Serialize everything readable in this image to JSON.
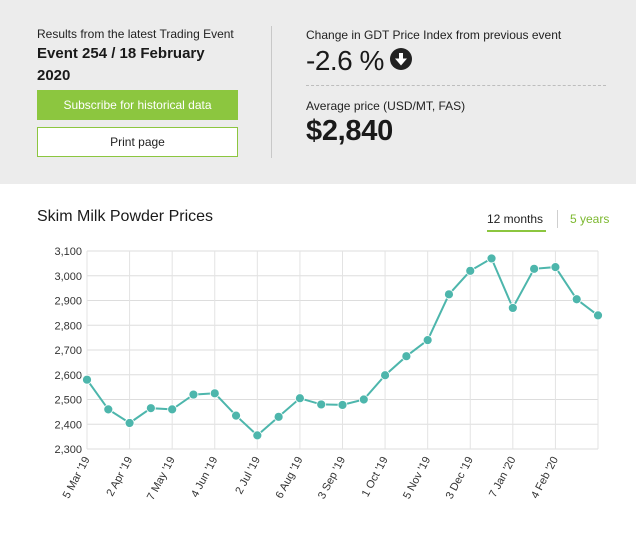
{
  "summary": {
    "results_label": "Results from the latest Trading Event",
    "event_line1": "Event 254 / 18 February",
    "event_line2": "2020",
    "subscribe_label": "Subscribe for historical data",
    "print_label": "Print page"
  },
  "change": {
    "label": "Change in GDT Price Index from previous event",
    "value": "-2.6 %",
    "direction_icon": "arrow-down-circle-icon"
  },
  "average": {
    "label": "Average price (USD/MT, FAS)",
    "value": "$2,840"
  },
  "tabs": {
    "tab_12m": "12 months",
    "tab_5y": "5 years",
    "active": "12 months"
  },
  "colors": {
    "accent_green": "#8cc63f",
    "line": "#4db6ac",
    "marker": "#4db6ac"
  },
  "chart_data": {
    "type": "line",
    "title": "Skim Milk Powder Prices",
    "xlabel": "",
    "ylabel": "",
    "ylim": [
      2300,
      3100
    ],
    "yticks": [
      2300,
      2400,
      2500,
      2600,
      2700,
      2800,
      2900,
      3000,
      3100
    ],
    "ytick_labels": [
      "2,300",
      "2,400",
      "2,500",
      "2,600",
      "2,700",
      "2,800",
      "2,900",
      "3,000",
      "3,100"
    ],
    "xtick_labels": [
      "5 Mar '19",
      "2 Apr '19",
      "7 May '19",
      "4 Jun '19",
      "2 Jul '19",
      "6 Aug '19",
      "3 Sep '19",
      "1 Oct '19",
      "5 Nov '19",
      "3 Dec '19",
      "7 Jan '20",
      "4 Feb '20"
    ],
    "xtick_positions": [
      0,
      2,
      4,
      6,
      8,
      10,
      12,
      14,
      16,
      18,
      20,
      22
    ],
    "grid": true,
    "legend": "none",
    "series": [
      {
        "values": [
          2580,
          2460,
          2405,
          2465,
          2460,
          2520,
          2525,
          2435,
          2355,
          2430,
          2505,
          2480,
          2478,
          2500,
          2598,
          2675,
          2740,
          2925,
          3020,
          3070,
          2870,
          3028,
          3035,
          2905,
          2840
        ]
      }
    ]
  }
}
